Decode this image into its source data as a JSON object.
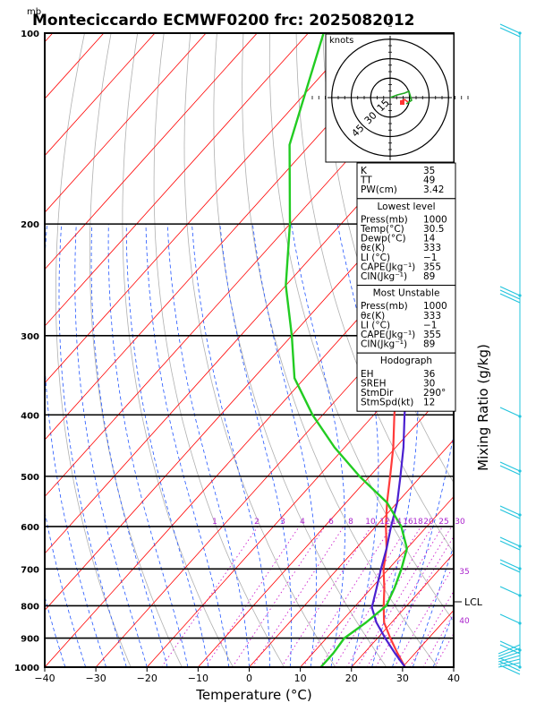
{
  "title": "Monteciccardo ECMWF0200  frc: 2025082012",
  "mb_label": "mb",
  "xlabel": "Temperature (°C)",
  "ylabel": "Mixing Ratio (g/kg)",
  "lcl_label": "LCL",
  "hodo_units": "knots",
  "hodo_rings": [
    "15",
    "30",
    "45"
  ],
  "mixing_ratio_labels": [
    "1",
    "2",
    "3",
    "4",
    "6",
    "8",
    "10",
    "12",
    "14",
    "16",
    "18",
    "20",
    "25",
    "30",
    "35",
    "40"
  ],
  "colors": {
    "temperature": "#ff3b3b",
    "parcel": "#4a20d0",
    "dewpoint": "#22cc22",
    "isotherm": "#ff0000",
    "dry_adiabat": "#b0b0b0",
    "moist_adiabat": "#2255ff",
    "mixing_ratio": "#cc22cc",
    "wind": "#22c4dd",
    "mr_label": "#aa22cc"
  },
  "stats": {
    "top": [
      {
        "label": "K",
        "value": "35"
      },
      {
        "label": "TT",
        "value": "49"
      },
      {
        "label": "PW(cm)",
        "value": "3.42"
      }
    ],
    "sections": [
      {
        "title": "Lowest level",
        "rows": [
          {
            "label": "Press(mb)",
            "value": "1000"
          },
          {
            "label": "Temp(°C)",
            "value": "30.5"
          },
          {
            "label": "Dewp(°C)",
            "value": "14"
          },
          {
            "label": "θε(K)",
            "value": "333"
          },
          {
            "label": "LI (°C)",
            "value": "−1"
          },
          {
            "label": "CAPE(Jkg⁻¹)",
            "value": "355"
          },
          {
            "label": "CIN(Jkg⁻¹)",
            "value": "89"
          }
        ]
      },
      {
        "title": "Most Unstable",
        "rows": [
          {
            "label": "Press(mb)",
            "value": "1000"
          },
          {
            "label": "θε(K)",
            "value": "333"
          },
          {
            "label": "LI (°C)",
            "value": "−1"
          },
          {
            "label": "CAPE(Jkg⁻¹)",
            "value": "355"
          },
          {
            "label": "CIN(Jkg⁻¹)",
            "value": "89"
          }
        ]
      },
      {
        "title": "Hodograph",
        "rows": [
          {
            "label": "EH",
            "value": "36"
          },
          {
            "label": "SREH",
            "value": "30"
          },
          {
            "label": "StmDir",
            "value": "290°"
          },
          {
            "label": "StmSpd(kt)",
            "value": "12"
          }
        ]
      }
    ]
  },
  "chart_data": {
    "type": "line",
    "title": "Monteciccardo ECMWF0200  frc: 2025082012",
    "xlabel": "Temperature (°C)",
    "ylabel": "mb",
    "x_ticks": [
      -40,
      -30,
      -20,
      -10,
      0,
      10,
      20,
      30,
      40
    ],
    "xlim": [
      -40,
      40
    ],
    "pressure_ticks": [
      1000,
      900,
      800,
      700,
      600,
      500,
      400,
      300,
      200,
      100
    ],
    "ylim_mb": [
      1000,
      100
    ],
    "y_scale": "log",
    "series": [
      {
        "key": "temperature",
        "points": [
          [
            1000,
            30.5
          ],
          [
            950,
            26.5
          ],
          [
            900,
            22.5
          ],
          [
            850,
            18.5
          ],
          [
            800,
            15.5
          ],
          [
            750,
            12.5
          ],
          [
            700,
            9
          ],
          [
            650,
            6
          ],
          [
            600,
            2
          ],
          [
            550,
            -2
          ],
          [
            500,
            -6
          ],
          [
            450,
            -10.5
          ],
          [
            400,
            -16
          ],
          [
            350,
            -22
          ],
          [
            300,
            -29
          ],
          [
            250,
            -38
          ],
          [
            200,
            -47
          ],
          [
            150,
            -57
          ],
          [
            100,
            -62
          ]
        ]
      },
      {
        "key": "parcel",
        "points": [
          [
            1000,
            30.5
          ],
          [
            950,
            26
          ],
          [
            900,
            21.5
          ],
          [
            850,
            17
          ],
          [
            805,
            13.5
          ],
          [
            750,
            11
          ],
          [
            700,
            8.5
          ],
          [
            650,
            6
          ],
          [
            600,
            3
          ],
          [
            550,
            0
          ],
          [
            500,
            -4
          ],
          [
            450,
            -8.5
          ],
          [
            400,
            -14
          ],
          [
            350,
            -20
          ],
          [
            300,
            -27
          ],
          [
            250,
            -36
          ],
          [
            200,
            -47
          ],
          [
            150,
            -61
          ],
          [
            110,
            -75
          ]
        ]
      },
      {
        "key": "dewpoint",
        "points": [
          [
            1000,
            14
          ],
          [
            950,
            14
          ],
          [
            900,
            13.5
          ],
          [
            850,
            15
          ],
          [
            800,
            16
          ],
          [
            750,
            14.5
          ],
          [
            700,
            12.5
          ],
          [
            650,
            10
          ],
          [
            600,
            5
          ],
          [
            550,
            -2
          ],
          [
            500,
            -12
          ],
          [
            450,
            -22
          ],
          [
            400,
            -32
          ],
          [
            350,
            -42
          ],
          [
            300,
            -50
          ],
          [
            250,
            -60
          ],
          [
            200,
            -70
          ],
          [
            150,
            -84
          ],
          [
            100,
            -97
          ]
        ]
      }
    ],
    "lcl_mb": 790,
    "hodograph": {
      "rings_kt": [
        15,
        30,
        45
      ],
      "storm_dir_deg": 290,
      "storm_spd_kt": 12
    }
  }
}
